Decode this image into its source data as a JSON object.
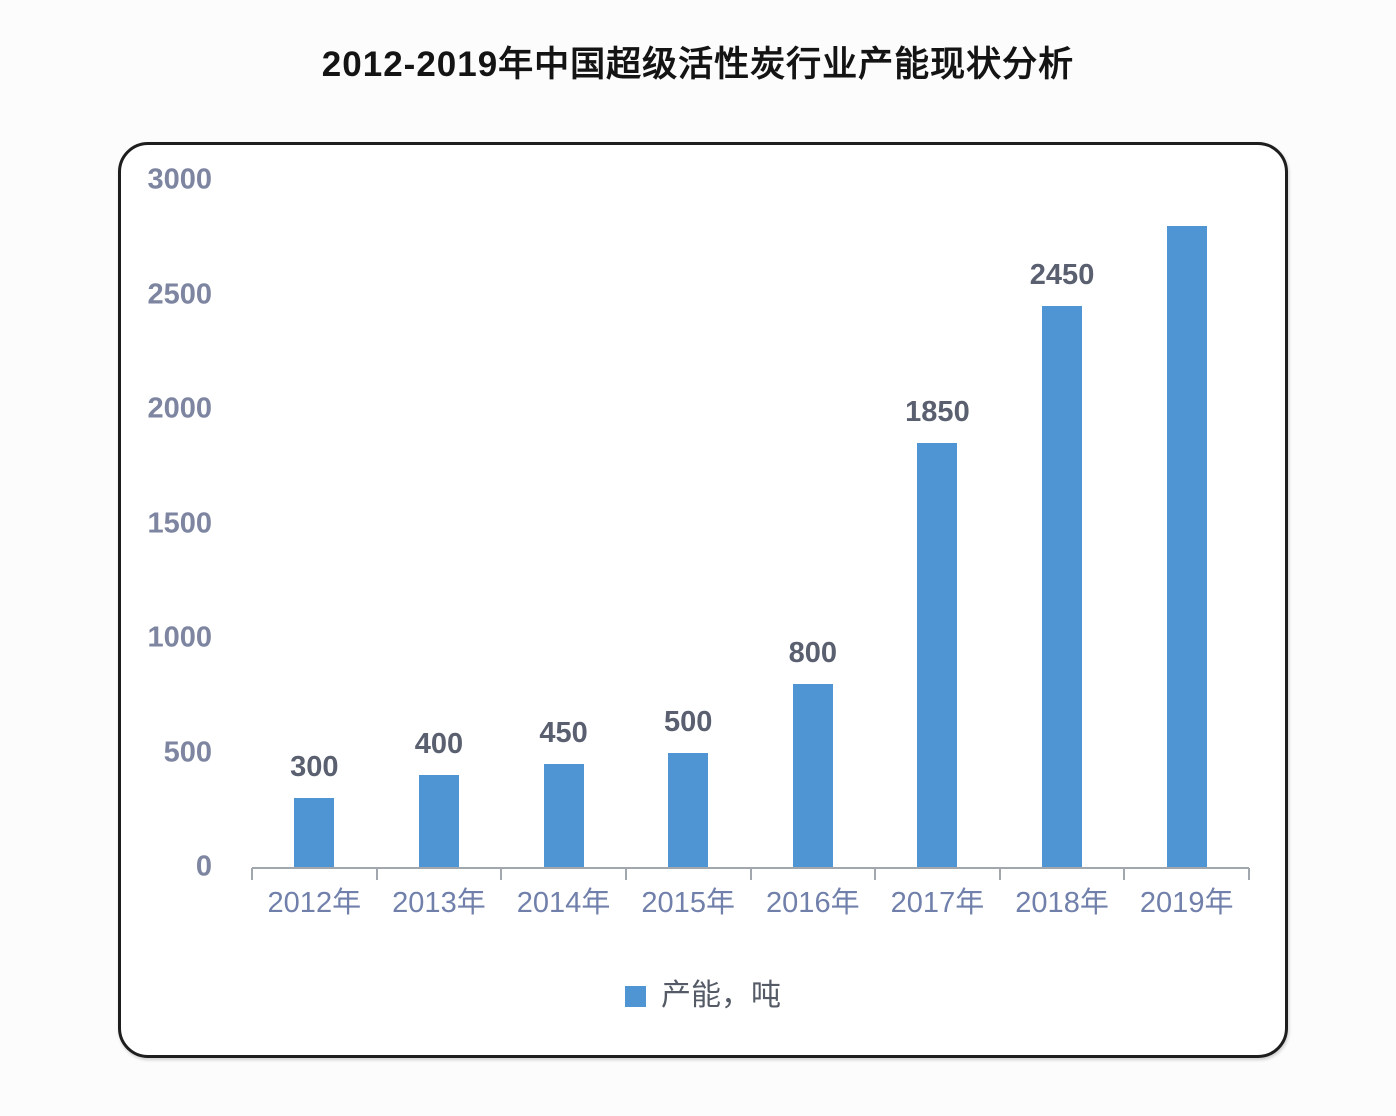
{
  "page": {
    "title": "2012-2019年中国超级活性炭行业产能现状分析"
  },
  "chart_data": {
    "type": "bar",
    "title": "2012-2019年中国超级活性炭行业产能现状分析",
    "categories": [
      "2012年",
      "2013年",
      "2014年",
      "2015年",
      "2016年",
      "2017年",
      "2018年",
      "2019年"
    ],
    "values": [
      300,
      400,
      450,
      500,
      800,
      1850,
      2450,
      2800
    ],
    "data_labels": [
      "300",
      "400",
      "450",
      "500",
      "800",
      "1850",
      "2450",
      ""
    ],
    "series_name": "产能，吨",
    "legend": {
      "label": "产能，吨",
      "position": "bottom"
    },
    "xlabel": "",
    "ylabel": "",
    "ylim": [
      0,
      3000
    ],
    "yticks": [
      0,
      500,
      1000,
      1500,
      2000,
      2500,
      3000
    ],
    "grid": false
  },
  "colors": {
    "page_bg": "#fcfcfd",
    "card_bg": "#ffffff",
    "card_border": "#1e1e1e",
    "bar": "#4f94d3",
    "axis": "#a2a6ad",
    "y_label": "#7d85a0",
    "x_label": "#7080ab",
    "data_label": "#5a6070",
    "legend_text": "#555b66",
    "title": "#141414"
  }
}
